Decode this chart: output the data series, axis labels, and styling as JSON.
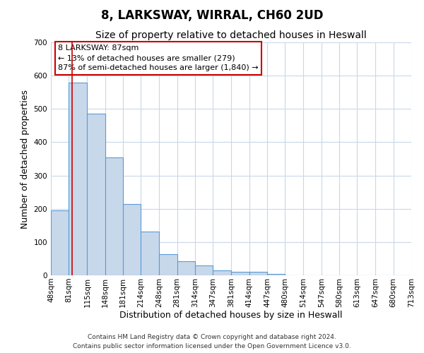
{
  "title": "8, LARKSWAY, WIRRAL, CH60 2UD",
  "subtitle": "Size of property relative to detached houses in Heswall",
  "xlabel": "Distribution of detached houses by size in Heswall",
  "ylabel": "Number of detached properties",
  "bin_edges": [
    48,
    81,
    115,
    148,
    181,
    214,
    248,
    281,
    314,
    347,
    381,
    414,
    447,
    480,
    514,
    547,
    580,
    613,
    647,
    680,
    713
  ],
  "bar_heights": [
    195,
    580,
    485,
    355,
    215,
    132,
    63,
    42,
    30,
    15,
    10,
    10,
    5,
    0,
    0,
    0,
    0,
    0,
    0,
    0
  ],
  "bar_color": "#c8d8eb",
  "bar_edge_color": "#5b9bd5",
  "marker_value": 87,
  "marker_color": "#cc0000",
  "ylim": [
    0,
    700
  ],
  "yticks": [
    0,
    100,
    200,
    300,
    400,
    500,
    600,
    700
  ],
  "xtick_labels": [
    "48sqm",
    "81sqm",
    "115sqm",
    "148sqm",
    "181sqm",
    "214sqm",
    "248sqm",
    "281sqm",
    "314sqm",
    "347sqm",
    "381sqm",
    "414sqm",
    "447sqm",
    "480sqm",
    "514sqm",
    "547sqm",
    "580sqm",
    "613sqm",
    "647sqm",
    "680sqm",
    "713sqm"
  ],
  "annotation_title": "8 LARKSWAY: 87sqm",
  "annotation_line1": "← 13% of detached houses are smaller (279)",
  "annotation_line2": "87% of semi-detached houses are larger (1,840) →",
  "annotation_box_color": "#ffffff",
  "annotation_box_edge_color": "#cc0000",
  "footer1": "Contains HM Land Registry data © Crown copyright and database right 2024.",
  "footer2": "Contains public sector information licensed under the Open Government Licence v3.0.",
  "background_color": "#ffffff",
  "grid_color": "#c8d8e8",
  "title_fontsize": 12,
  "subtitle_fontsize": 10,
  "ylabel_fontsize": 9,
  "xlabel_fontsize": 9,
  "tick_fontsize": 7.5,
  "footer_fontsize": 6.5
}
